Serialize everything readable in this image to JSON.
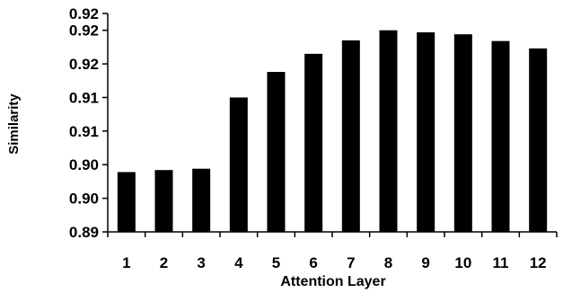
{
  "chart_data": {
    "type": "bar",
    "title": "",
    "xlabel": "Attention Layer",
    "ylabel": "Similarity",
    "categories": [
      "1",
      "2",
      "3",
      "4",
      "5",
      "6",
      "7",
      "8",
      "9",
      "10",
      "11",
      "12"
    ],
    "values": [
      0.8964,
      0.8967,
      0.8969,
      0.9075,
      0.9113,
      0.914,
      0.916,
      0.9175,
      0.9172,
      0.9169,
      0.9159,
      0.9148
    ],
    "ylim": [
      0.8875,
      0.92
    ],
    "yticks": [
      0.8875,
      0.8925,
      0.8975,
      0.9025,
      0.9075,
      0.9125,
      0.9175,
      0.92
    ],
    "ytick_labels": [
      "0.89",
      "0.90",
      "0.90",
      "0.91",
      "0.91",
      "0.92",
      "0.92",
      "0.92"
    ],
    "grid": false,
    "legend": "none",
    "bar_color": "#000000"
  }
}
